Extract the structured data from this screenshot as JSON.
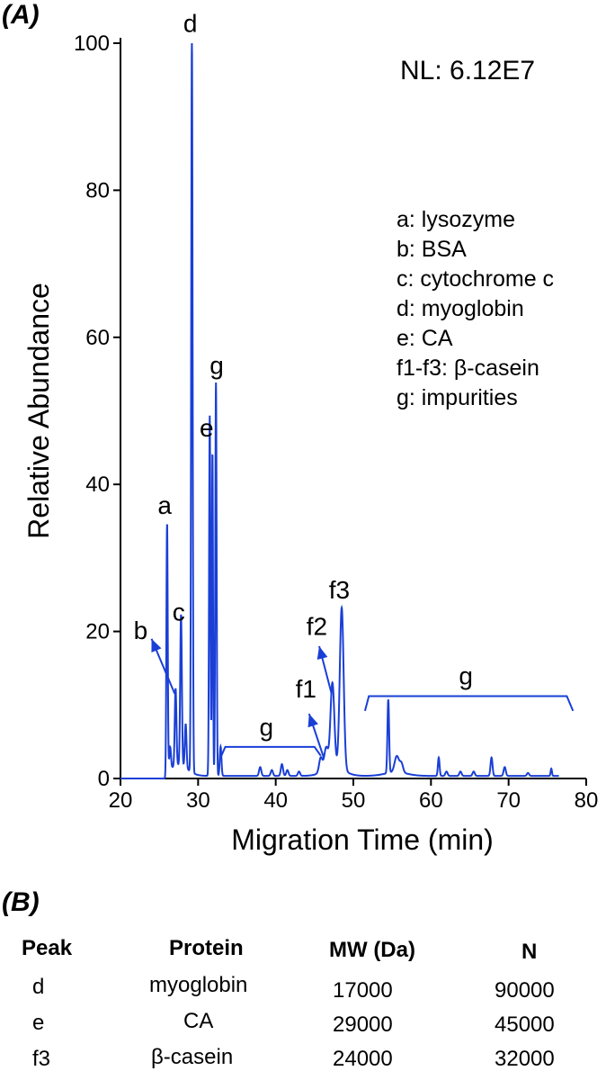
{
  "panel_a_label": "(A)",
  "panel_b_label": "(B)",
  "chart_data": {
    "type": "line",
    "xlabel": "Migration Time (min)",
    "ylabel": "Relative Abundance",
    "xlim": [
      20,
      80
    ],
    "ylim": [
      0,
      100
    ],
    "xticks": [
      20,
      30,
      40,
      50,
      60,
      70,
      80
    ],
    "yticks": [
      0,
      20,
      40,
      60,
      80,
      100
    ],
    "grid": false,
    "line_color": "#1a3fd6",
    "nl_text": "NL: 6.12E7",
    "legend": [
      "a: lysozyme",
      "b: BSA",
      "c: cytochrome c",
      "d: myoglobin",
      "e: CA",
      "f1-f3: β-casein",
      "g: impurities"
    ],
    "legend_placement": "right",
    "peaks": [
      {
        "x": 26.0,
        "y": 34.5,
        "w": 0.12
      },
      {
        "x": 26.4,
        "y": 3.0,
        "w": 0.15
      },
      {
        "x": 27.1,
        "y": 10.5,
        "w": 0.15
      },
      {
        "x": 27.8,
        "y": 20.5,
        "w": 0.15
      },
      {
        "x": 28.4,
        "y": 6.0,
        "w": 0.15
      },
      {
        "x": 29.2,
        "y": 100.0,
        "w": 0.13
      },
      {
        "x": 31.5,
        "y": 49.0,
        "w": 0.12
      },
      {
        "x": 31.85,
        "y": 44.0,
        "w": 0.1
      },
      {
        "x": 32.3,
        "y": 53.5,
        "w": 0.12
      },
      {
        "x": 32.9,
        "y": 4.0,
        "w": 0.15
      },
      {
        "x": 38.0,
        "y": 1.2,
        "w": 0.2
      },
      {
        "x": 39.5,
        "y": 0.8,
        "w": 0.2
      },
      {
        "x": 40.8,
        "y": 1.6,
        "w": 0.2
      },
      {
        "x": 41.5,
        "y": 0.8,
        "w": 0.2
      },
      {
        "x": 43.0,
        "y": 0.6,
        "w": 0.2
      },
      {
        "x": 45.8,
        "y": 2.0,
        "w": 0.3
      },
      {
        "x": 46.5,
        "y": 3.0,
        "w": 0.35
      },
      {
        "x": 47.3,
        "y": 11.5,
        "w": 0.35
      },
      {
        "x": 48.5,
        "y": 22.0,
        "w": 0.35
      },
      {
        "x": 54.5,
        "y": 10.0,
        "w": 0.15
      },
      {
        "x": 55.6,
        "y": 2.2,
        "w": 0.4
      },
      {
        "x": 56.2,
        "y": 1.2,
        "w": 0.3
      },
      {
        "x": 61.0,
        "y": 2.5,
        "w": 0.15
      },
      {
        "x": 62.0,
        "y": 0.6,
        "w": 0.2
      },
      {
        "x": 63.8,
        "y": 0.6,
        "w": 0.2
      },
      {
        "x": 65.5,
        "y": 0.6,
        "w": 0.2
      },
      {
        "x": 67.8,
        "y": 2.5,
        "w": 0.18
      },
      {
        "x": 69.5,
        "y": 1.2,
        "w": 0.2
      },
      {
        "x": 72.5,
        "y": 0.4,
        "w": 0.2
      },
      {
        "x": 75.5,
        "y": 1.0,
        "w": 0.12
      }
    ],
    "peak_labels": [
      {
        "text": "a",
        "x": 25.7,
        "y": 36.0
      },
      {
        "text": "b",
        "x": 22.6,
        "y": 19.0
      },
      {
        "text": "c",
        "x": 27.5,
        "y": 21.5
      },
      {
        "text": "d",
        "x": 29.0,
        "y": 101.5
      },
      {
        "text": "e",
        "x": 31.1,
        "y": 46.5
      },
      {
        "text": "g",
        "x": 32.4,
        "y": 55.0
      },
      {
        "text": "f1",
        "x": 43.9,
        "y": 11.0
      },
      {
        "text": "f2",
        "x": 45.3,
        "y": 19.5
      },
      {
        "text": "f3",
        "x": 48.2,
        "y": 24.5
      },
      {
        "text": "g",
        "x": 38.8,
        "y": 5.8
      },
      {
        "text": "g",
        "x": 64.5,
        "y": 12.8
      }
    ],
    "arrows": [
      {
        "from": [
          27.0,
          11.5
        ],
        "to": [
          24.0,
          19.0
        ]
      },
      {
        "from": [
          46.2,
          2.8
        ],
        "to": [
          44.3,
          8.8
        ]
      },
      {
        "from": [
          47.2,
          11.5
        ],
        "to": [
          45.6,
          18.0
        ]
      }
    ],
    "brackets": [
      {
        "x1": 33.5,
        "x2": 45.0,
        "y": 4.3,
        "tick": 1.2
      },
      {
        "x1": 52.0,
        "x2": 77.5,
        "y": 11.2,
        "tick": 2.0
      }
    ]
  },
  "table": {
    "headers": [
      "Peak",
      "Protein",
      "MW (Da)",
      "N"
    ],
    "rows": [
      [
        "d",
        "myoglobin",
        "17000",
        "90000"
      ],
      [
        "e",
        "CA",
        "29000",
        "45000"
      ],
      [
        "f3",
        "β-casein",
        "24000",
        "32000"
      ]
    ]
  }
}
